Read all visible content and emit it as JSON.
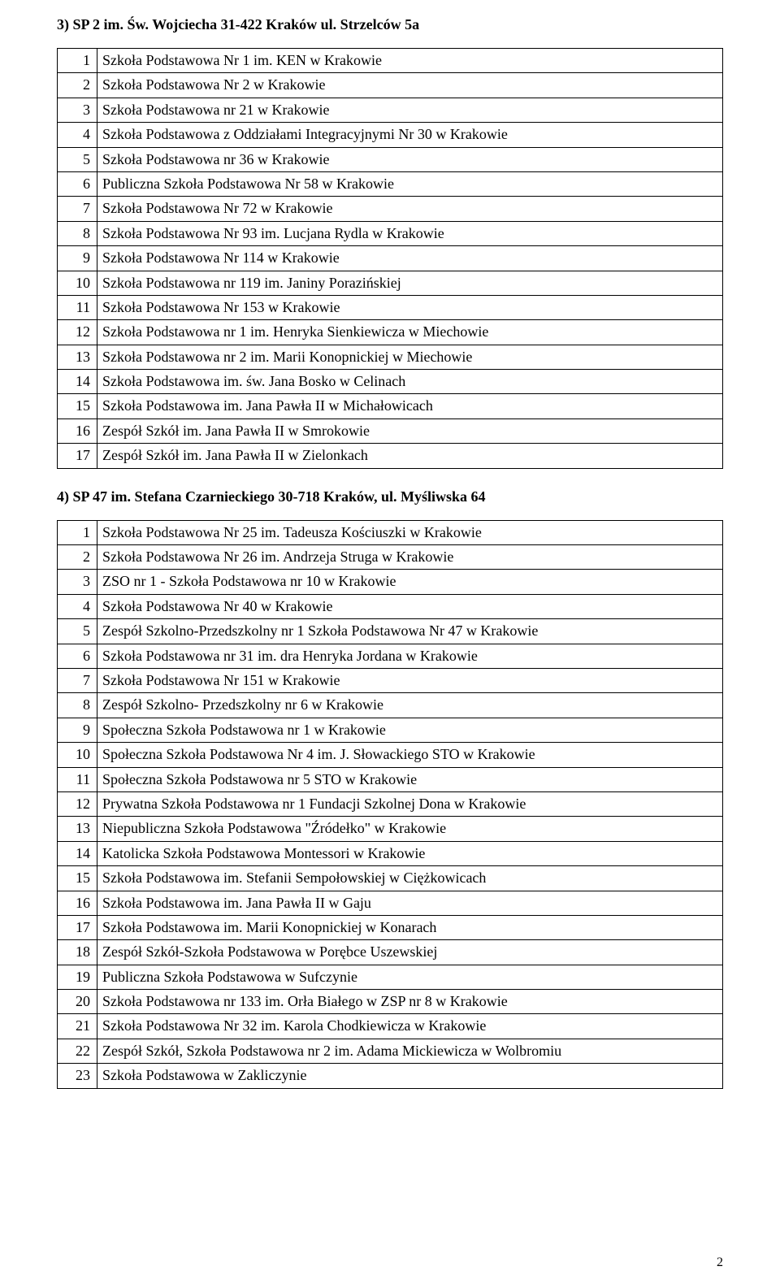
{
  "section3": {
    "heading": "3) SP 2  im. Św. Wojciecha  31-422 Kraków ul. Strzelców 5a",
    "rows": [
      {
        "n": "1",
        "text": "Szkoła Podstawowa Nr 1 im. KEN w Krakowie"
      },
      {
        "n": "2",
        "text": "Szkoła Podstawowa Nr 2 w Krakowie"
      },
      {
        "n": "3",
        "text": "Szkoła Podstawowa nr 21 w Krakowie"
      },
      {
        "n": "4",
        "text": "Szkoła Podstawowa z Oddziałami Integracyjnymi Nr 30 w Krakowie"
      },
      {
        "n": "5",
        "text": "Szkoła Podstawowa nr 36 w Krakowie"
      },
      {
        "n": "6",
        "text": "Publiczna Szkoła Podstawowa Nr 58 w Krakowie"
      },
      {
        "n": "7",
        "text": "Szkoła Podstawowa Nr 72 w Krakowie"
      },
      {
        "n": "8",
        "text": "Szkoła Podstawowa Nr 93 im. Lucjana Rydla w Krakowie"
      },
      {
        "n": "9",
        "text": "Szkoła Podstawowa Nr 114  w Krakowie"
      },
      {
        "n": "10",
        "text": "Szkoła Podstawowa nr 119 im. Janiny Porazińskiej"
      },
      {
        "n": "11",
        "text": "Szkoła Podstawowa Nr 153 w Krakowie"
      },
      {
        "n": "12",
        "text": "Szkoła Podstawowa nr 1 im. Henryka Sienkiewicza w Miechowie"
      },
      {
        "n": "13",
        "text": "Szkoła Podstawowa nr 2 im. Marii Konopnickiej w Miechowie"
      },
      {
        "n": "14",
        "text": "Szkoła Podstawowa im. św. Jana Bosko w Celinach"
      },
      {
        "n": "15",
        "text": "Szkoła Podstawowa im. Jana Pawła II w Michałowicach"
      },
      {
        "n": "16",
        "text": "Zespół Szkół im. Jana Pawła II w Smrokowie"
      },
      {
        "n": "17",
        "text": "Zespół Szkół im. Jana Pawła II w Zielonkach"
      }
    ]
  },
  "section4": {
    "heading": "4)  SP 47 im. Stefana Czarnieckiego    30-718 Kraków, ul. Myśliwska 64",
    "rows": [
      {
        "n": "1",
        "text": "Szkoła Podstawowa Nr 25 im. Tadeusza Kościuszki w Krakowie"
      },
      {
        "n": "2",
        "text": "Szkoła Podstawowa Nr 26 im. Andrzeja Struga w Krakowie"
      },
      {
        "n": "3",
        "text": "ZSO nr 1 - Szkoła Podstawowa nr 10 w Krakowie"
      },
      {
        "n": "4",
        "text": "Szkoła Podstawowa Nr 40 w Krakowie"
      },
      {
        "n": "5",
        "text": "Zespół Szkolno-Przedszkolny nr 1 Szkoła Podstawowa Nr 47 w Krakowie"
      },
      {
        "n": "6",
        "text": "Szkoła Podstawowa nr 31 im. dra Henryka Jordana w Krakowie"
      },
      {
        "n": "7",
        "text": "Szkoła Podstawowa Nr 151 w Krakowie"
      },
      {
        "n": "8",
        "text": "Zespół Szkolno- Przedszkolny nr 6 w Krakowie"
      },
      {
        "n": "9",
        "text": "Społeczna Szkoła Podstawowa nr 1 w Krakowie"
      },
      {
        "n": "10",
        "text": "Społeczna Szkoła Podstawowa Nr 4 im. J. Słowackiego STO w Krakowie"
      },
      {
        "n": "11",
        "text": "Społeczna Szkoła Podstawowa nr 5 STO w Krakowie"
      },
      {
        "n": "12",
        "text": "Prywatna Szkoła Podstawowa nr 1 Fundacji Szkolnej Dona w Krakowie"
      },
      {
        "n": "13",
        "text": "Niepubliczna Szkoła Podstawowa \"Źródełko\"  w Krakowie"
      },
      {
        "n": "14",
        "text": "Katolicka Szkoła Podstawowa Montessori w Krakowie"
      },
      {
        "n": "15",
        "text": "Szkoła Podstawowa im. Stefanii Sempołowskiej w Ciężkowicach"
      },
      {
        "n": "16",
        "text": "Szkoła Podstawowa im. Jana Pawła II w Gaju"
      },
      {
        "n": "17",
        "text": "Szkoła Podstawowa im. Marii Konopnickiej w Konarach"
      },
      {
        "n": "18",
        "text": "Zespół Szkół-Szkoła Podstawowa w Porębce Uszewskiej"
      },
      {
        "n": "19",
        "text": "Publiczna Szkoła Podstawowa w Sufczynie"
      },
      {
        "n": "20",
        "text": "Szkoła Podstawowa nr 133 im. Orła Białego w ZSP nr 8 w Krakowie"
      },
      {
        "n": "21",
        "text": "Szkoła Podstawowa Nr 32 im. Karola Chodkiewicza w Krakowie"
      },
      {
        "n": "22",
        "text": "Zespół Szkół, Szkoła Podstawowa nr 2 im. Adama Mickiewicza w Wolbromiu"
      },
      {
        "n": "23",
        "text": "Szkoła Podstawowa w Zakliczynie"
      }
    ]
  },
  "pageNumber": "2"
}
